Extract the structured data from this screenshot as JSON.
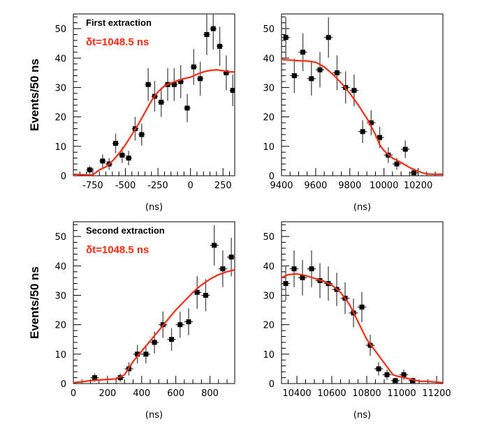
{
  "figure": {
    "ylabel": "Events/50 ns",
    "colors": {
      "fit": "#ff2a10",
      "points": "#000000",
      "errorbar": "#555555",
      "frame": "#000000"
    }
  },
  "chart_data": [
    {
      "type": "scatter",
      "panel": "top-left",
      "title": "First extraction",
      "annotation": "δt=1048.5 ns",
      "xlabel": "(ns)",
      "ylabel": "Events/50 ns",
      "xlim": [
        -900,
        340
      ],
      "ylim": [
        0,
        55
      ],
      "xticks": [
        -750,
        -500,
        -250,
        0,
        250
      ],
      "xtick_labels": [
        "-750",
        "-500",
        "-250",
        "0",
        "250"
      ],
      "x_minor_step": 50,
      "yticks": [
        0,
        10,
        20,
        30,
        40,
        50
      ],
      "ytick_labels": [
        "0",
        "10",
        "20",
        "30",
        "40",
        "50"
      ],
      "y_minor_step": 2,
      "series": [
        {
          "name": "data",
          "x": [
            -775,
            -675,
            -625,
            -575,
            -525,
            -475,
            -425,
            -375,
            -325,
            -275,
            -225,
            -175,
            -125,
            -75,
            -25,
            25,
            75,
            125,
            175,
            225,
            275,
            325
          ],
          "y": [
            2,
            5,
            4,
            11,
            7,
            6,
            16,
            14,
            31,
            27,
            25,
            31,
            31,
            32,
            23,
            37,
            33,
            48,
            50,
            44,
            35,
            29
          ]
        },
        {
          "name": "fit",
          "x": [
            -900,
            -850,
            -800,
            -750,
            -700,
            -650,
            -600,
            -550,
            -500,
            -450,
            -400,
            -350,
            -300,
            -250,
            -200,
            -150,
            -100,
            -50,
            0,
            50,
            100,
            150,
            200,
            250,
            300,
            340
          ],
          "y": [
            0.5,
            0.4,
            0.3,
            0.3,
            2,
            3,
            5,
            7.5,
            10.5,
            14,
            17.5,
            21.5,
            25.5,
            28.5,
            30.5,
            31.5,
            32.3,
            33,
            33.5,
            34.5,
            35.3,
            35.8,
            36,
            35.7,
            35.3,
            35.3
          ]
        }
      ]
    },
    {
      "type": "scatter",
      "panel": "top-right",
      "title": "",
      "annotation": "",
      "xlabel": "(ns)",
      "ylabel": "",
      "xlim": [
        9400,
        10345
      ],
      "ylim": [
        0,
        55
      ],
      "xticks": [
        9400,
        9600,
        9800,
        10000,
        10200
      ],
      "xtick_labels": [
        "9400",
        "9600",
        "9800",
        "10000",
        "10200"
      ],
      "x_minor_step": 50,
      "yticks": [
        0,
        10,
        20,
        30,
        40,
        50
      ],
      "ytick_labels": [
        "0",
        "10",
        "20",
        "30",
        "40",
        "50"
      ],
      "y_minor_step": 2,
      "series": [
        {
          "name": "data",
          "x": [
            9425,
            9475,
            9525,
            9575,
            9625,
            9675,
            9725,
            9775,
            9825,
            9875,
            9925,
            9975,
            10025,
            10075,
            10125,
            10175
          ],
          "y": [
            47,
            34,
            42,
            33,
            36,
            47,
            35,
            30,
            29,
            15,
            18,
            13,
            7,
            4,
            9,
            1
          ]
        },
        {
          "name": "fit",
          "x": [
            9400,
            9450,
            9500,
            9550,
            9600,
            9650,
            9700,
            9750,
            9800,
            9850,
            9900,
            9950,
            9975,
            10000,
            10050,
            10100,
            10150,
            10200,
            10250,
            10300,
            10345
          ],
          "y": [
            39.5,
            39.3,
            39.1,
            39,
            38.6,
            37,
            34.5,
            31.5,
            28,
            24,
            19.5,
            14,
            10.5,
            8.5,
            6,
            4.5,
            2.8,
            1.5,
            0.6,
            0.5,
            0.5
          ]
        }
      ]
    },
    {
      "type": "scatter",
      "panel": "bottom-left",
      "title": "Second extraction",
      "annotation": "δt=1048.5 ns",
      "xlabel": "(ns)",
      "ylabel": "Events/50 ns",
      "xlim": [
        0,
        945
      ],
      "ylim": [
        0,
        55
      ],
      "xticks": [
        0,
        200,
        400,
        600,
        800
      ],
      "xtick_labels": [
        "0",
        "200",
        "400",
        "600",
        "800"
      ],
      "x_minor_step": 50,
      "yticks": [
        0,
        10,
        20,
        30,
        40,
        50
      ],
      "ytick_labels": [
        "0",
        "10",
        "20",
        "30",
        "40",
        "50"
      ],
      "y_minor_step": 2,
      "series": [
        {
          "name": "data",
          "x": [
            125,
            275,
            325,
            375,
            425,
            475,
            525,
            575,
            625,
            675,
            725,
            775,
            825,
            875,
            925
          ],
          "y": [
            2,
            2,
            5,
            10,
            10,
            14,
            20,
            15,
            20,
            21,
            31,
            30,
            47,
            39,
            43
          ]
        },
        {
          "name": "fit",
          "x": [
            0,
            50,
            100,
            150,
            200,
            250,
            300,
            350,
            400,
            450,
            500,
            550,
            600,
            650,
            700,
            750,
            800,
            850,
            900,
            945
          ],
          "y": [
            0.3,
            0.6,
            1,
            1.2,
            1.4,
            1.6,
            3,
            7.5,
            11,
            14.5,
            18,
            21.5,
            25,
            28,
            31,
            33.5,
            35.5,
            37,
            38,
            38.7
          ]
        }
      ]
    },
    {
      "type": "scatter",
      "panel": "bottom-right",
      "title": "",
      "annotation": "",
      "xlabel": "(ns)",
      "ylabel": "",
      "xlim": [
        10312,
        11236
      ],
      "ylim": [
        0,
        55
      ],
      "xticks": [
        10400,
        10600,
        10800,
        11000,
        11200
      ],
      "xtick_labels": [
        "10400",
        "10600",
        "10800",
        "11000",
        "11200"
      ],
      "x_minor_step": 50,
      "yticks": [
        0,
        10,
        20,
        30,
        40,
        50
      ],
      "ytick_labels": [
        "0",
        "10",
        "20",
        "30",
        "40",
        "50"
      ],
      "y_minor_step": 2,
      "series": [
        {
          "name": "data",
          "x": [
            10336,
            10384,
            10432,
            10484,
            10532,
            10580,
            10628,
            10676,
            10724,
            10772,
            10820,
            10868,
            10916,
            10964,
            11012,
            11064
          ],
          "y": [
            34,
            39,
            36,
            39,
            35,
            34,
            32,
            29,
            24,
            26,
            13,
            5,
            3,
            1,
            3,
            1
          ]
        },
        {
          "name": "fit",
          "x": [
            10312,
            10350,
            10400,
            10450,
            10500,
            10550,
            10600,
            10650,
            10700,
            10750,
            10800,
            10850,
            10900,
            10950,
            10975,
            11000,
            11050,
            11100,
            11150,
            11200,
            11236
          ],
          "y": [
            36,
            37,
            37.3,
            36.7,
            35.8,
            34.8,
            33.5,
            31,
            27,
            21,
            15,
            11,
            7,
            3,
            2.5,
            2.2,
            1.5,
            0.8,
            0.7,
            0.5,
            0.3
          ]
        }
      ]
    }
  ]
}
